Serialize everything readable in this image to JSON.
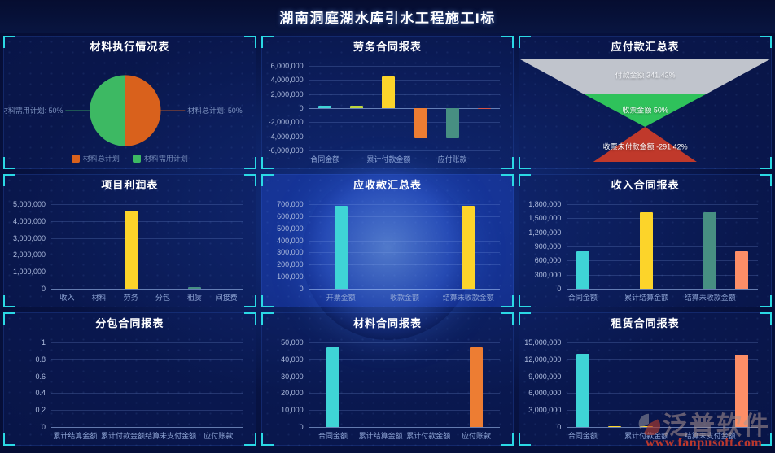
{
  "page": {
    "title": "湖南洞庭湖水库引水工程施工I标"
  },
  "watermark": {
    "brand": "泛普软件",
    "url": "www.fanpusoft.com"
  },
  "colors": {
    "bracket_cyan": "#2bd9e5",
    "panel_bg": "#0e1e60",
    "title_white": "#ffffff",
    "bar_cyan": "#3fd4d6",
    "bar_yellow": "#fcd42a",
    "bar_yellow_green": "#bdd63c",
    "bar_orange": "#ed7d33",
    "bar_teal": "#478f82",
    "bar_salmon": "#fd8e67",
    "bar_red": "#d8564a",
    "pie_orange": "#d9611c",
    "pie_green": "#3db963",
    "funnel_gray": "#c0c4cc",
    "funnel_green": "#2fc25b",
    "funnel_red": "#c0392b"
  },
  "chart_data": [
    {
      "type": "pie",
      "title": "材料执行情况表",
      "slices": [
        {
          "name": "材料总计划",
          "value": 50,
          "color": "#d9611c",
          "side": "right"
        },
        {
          "name": "材料需用计划",
          "value": 50,
          "color": "#3db963",
          "side": "left"
        }
      ],
      "callouts": {
        "left": {
          "text": "材料需用计划: 50%",
          "color": "#3db963"
        },
        "right": {
          "text": "材料总计划: 50%",
          "color": "#d9611c"
        }
      },
      "legend": [
        {
          "label": "材料总计划",
          "color": "#d9611c"
        },
        {
          "label": "材料需用计划",
          "color": "#3db963"
        }
      ]
    },
    {
      "type": "bar",
      "title": "劳务合同报表",
      "ylim": [
        -6000000,
        6000000
      ],
      "yticks": [
        {
          "v": 6000000,
          "label": "6,000,000"
        },
        {
          "v": 4000000,
          "label": "4,000,000"
        },
        {
          "v": 2000000,
          "label": "2,000,000"
        },
        {
          "v": 0,
          "label": "0"
        },
        {
          "v": -2000000,
          "label": "-2,000,000"
        },
        {
          "v": -4000000,
          "label": "-4,000,000"
        },
        {
          "v": -6000000,
          "label": "-6,000,000"
        }
      ],
      "slots": 6,
      "bars": [
        {
          "slot": 0,
          "value": 400000,
          "color": "#3fd4d6"
        },
        {
          "slot": 1,
          "value": 300000,
          "color": "#bdd63c"
        },
        {
          "slot": 2,
          "value": 4550000,
          "color": "#fcd42a"
        },
        {
          "slot": 3,
          "value": -4250000,
          "color": "#ed7d33"
        },
        {
          "slot": 4,
          "value": -4250000,
          "color": "#478f82"
        },
        {
          "slot": 5,
          "value": -90000,
          "color": "#d8564a"
        }
      ],
      "xlabels": [
        {
          "slot": 0,
          "label": "合同金额"
        },
        {
          "slot": 2,
          "label": "累计付款金额"
        },
        {
          "slot": 4,
          "label": "应付账款"
        }
      ]
    },
    {
      "type": "funnel",
      "title": "应付款汇总表",
      "items": [
        {
          "label": "付款金额 341.42%",
          "color": "#c0c4cc"
        },
        {
          "label": "收票金额 50%",
          "color": "#2fc25b"
        },
        {
          "label": "收票未付款金额 -291.42%",
          "color": "#c0392b"
        }
      ]
    },
    {
      "type": "bar",
      "title": "项目利润表",
      "ylim": [
        0,
        5000000
      ],
      "yticks": [
        {
          "v": 5000000,
          "label": "5,000,000"
        },
        {
          "v": 4000000,
          "label": "4,000,000"
        },
        {
          "v": 3000000,
          "label": "3,000,000"
        },
        {
          "v": 2000000,
          "label": "2,000,000"
        },
        {
          "v": 1000000,
          "label": "1,000,000"
        },
        {
          "v": 0,
          "label": "0"
        }
      ],
      "slots": 6,
      "bars": [
        {
          "slot": 2,
          "value": 4600000,
          "color": "#fcd42a"
        },
        {
          "slot": 4,
          "value": 90000,
          "color": "#478f82"
        }
      ],
      "xlabels": [
        {
          "slot": 0,
          "label": "收入"
        },
        {
          "slot": 1,
          "label": "材料"
        },
        {
          "slot": 2,
          "label": "劳务"
        },
        {
          "slot": 3,
          "label": "分包"
        },
        {
          "slot": 4,
          "label": "租赁"
        },
        {
          "slot": 5,
          "label": "间接费"
        }
      ]
    },
    {
      "type": "bar",
      "title": "应收款汇总表",
      "globe": true,
      "ylim": [
        0,
        700000
      ],
      "yticks": [
        {
          "v": 700000,
          "label": "700,000"
        },
        {
          "v": 600000,
          "label": "600,000"
        },
        {
          "v": 500000,
          "label": "500,000"
        },
        {
          "v": 400000,
          "label": "400,000"
        },
        {
          "v": 300000,
          "label": "300,000"
        },
        {
          "v": 200000,
          "label": "200,000"
        },
        {
          "v": 100000,
          "label": "100,000"
        },
        {
          "v": 0,
          "label": "0"
        }
      ],
      "slots": 3,
      "bars": [
        {
          "slot": 0,
          "value": 690000,
          "color": "#3fd4d6"
        },
        {
          "slot": 2,
          "value": 690000,
          "color": "#fcd42a"
        }
      ],
      "xlabels": [
        {
          "slot": 0,
          "label": "开票金额"
        },
        {
          "slot": 1,
          "label": "收款金额"
        },
        {
          "slot": 2,
          "label": "结算未收款金额"
        }
      ]
    },
    {
      "type": "bar",
      "title": "收入合同报表",
      "ylim": [
        0,
        1800000
      ],
      "yticks": [
        {
          "v": 1800000,
          "label": "1,800,000"
        },
        {
          "v": 1500000,
          "label": "1,500,000"
        },
        {
          "v": 1200000,
          "label": "1,200,000"
        },
        {
          "v": 900000,
          "label": "900,000"
        },
        {
          "v": 600000,
          "label": "600,000"
        },
        {
          "v": 300000,
          "label": "300,000"
        },
        {
          "v": 0,
          "label": "0"
        }
      ],
      "slots": 6,
      "bars": [
        {
          "slot": 0,
          "value": 790000,
          "color": "#3fd4d6"
        },
        {
          "slot": 2,
          "value": 1630000,
          "color": "#fcd42a"
        },
        {
          "slot": 4,
          "value": 1630000,
          "color": "#478f82"
        },
        {
          "slot": 5,
          "value": 790000,
          "color": "#fd8e67"
        }
      ],
      "xlabels": [
        {
          "slot": 0,
          "label": "合同金额"
        },
        {
          "slot": 2,
          "label": "累计结算金额"
        },
        {
          "slot": 4,
          "label": "结算未收款金额"
        }
      ]
    },
    {
      "type": "bar",
      "title": "分包合同报表",
      "ylim": [
        0,
        1
      ],
      "yticks": [
        {
          "v": 1,
          "label": "1"
        },
        {
          "v": 0.8,
          "label": "0.8"
        },
        {
          "v": 0.6,
          "label": "0.6"
        },
        {
          "v": 0.4,
          "label": "0.4"
        },
        {
          "v": 0.2,
          "label": "0.2"
        },
        {
          "v": 0,
          "label": "0"
        }
      ],
      "slots": 4,
      "bars": [],
      "xlabels": [
        {
          "slot": 0,
          "label": "累计结算金额"
        },
        {
          "slot": 1,
          "label": "累计付款金额"
        },
        {
          "slot": 2,
          "label": "结算未支付金额"
        },
        {
          "slot": 3,
          "label": "应付账款"
        }
      ]
    },
    {
      "type": "bar",
      "title": "材料合同报表",
      "ylim": [
        0,
        50000
      ],
      "yticks": [
        {
          "v": 50000,
          "label": "50,000"
        },
        {
          "v": 40000,
          "label": "40,000"
        },
        {
          "v": 30000,
          "label": "30,000"
        },
        {
          "v": 20000,
          "label": "20,000"
        },
        {
          "v": 10000,
          "label": "10,000"
        },
        {
          "v": 0,
          "label": "0"
        }
      ],
      "slots": 4,
      "bars": [
        {
          "slot": 0,
          "value": 47000,
          "color": "#3fd4d6"
        },
        {
          "slot": 3,
          "value": 47000,
          "color": "#ed7d33"
        }
      ],
      "xlabels": [
        {
          "slot": 0,
          "label": "合同金额"
        },
        {
          "slot": 1,
          "label": "累计结算金额"
        },
        {
          "slot": 2,
          "label": "累计付款金额"
        },
        {
          "slot": 3,
          "label": "应付账款"
        }
      ]
    },
    {
      "type": "bar",
      "title": "租赁合同报表",
      "ylim": [
        0,
        15000000
      ],
      "yticks": [
        {
          "v": 15000000,
          "label": "15,000,000"
        },
        {
          "v": 12000000,
          "label": "12,000,000"
        },
        {
          "v": 9000000,
          "label": "9,000,000"
        },
        {
          "v": 6000000,
          "label": "6,000,000"
        },
        {
          "v": 3000000,
          "label": "3,000,000"
        },
        {
          "v": 0,
          "label": "0"
        }
      ],
      "slots": 6,
      "bars": [
        {
          "slot": 0,
          "value": 13000000,
          "color": "#3fd4d6"
        },
        {
          "slot": 1,
          "value": 180000,
          "color": "#fcd42a"
        },
        {
          "slot": 2,
          "value": 180000,
          "color": "#fcd42a"
        },
        {
          "slot": 5,
          "value": 12800000,
          "color": "#fd8e67"
        }
      ],
      "xlabels": [
        {
          "slot": 0,
          "label": "合同金额"
        },
        {
          "slot": 2,
          "label": "累计付款金额"
        },
        {
          "slot": 4,
          "label": "结算未支付金额"
        }
      ]
    }
  ]
}
